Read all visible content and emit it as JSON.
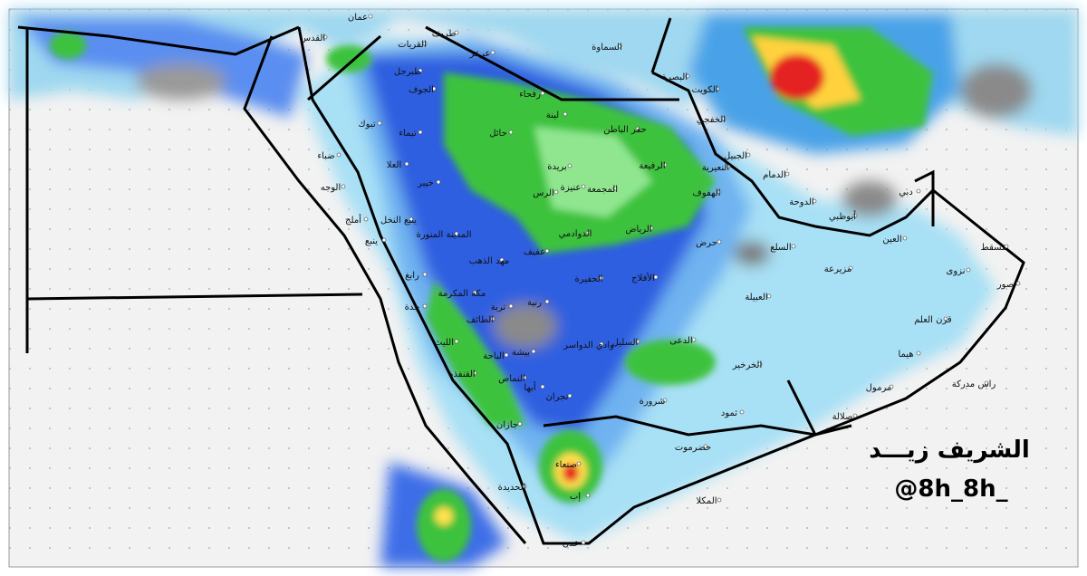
{
  "map": {
    "labels": [
      "عمان",
      "القدس",
      "طريف",
      "القريات",
      "عرعر",
      "السماوة",
      "البصرة",
      "طبرجل",
      "الكويت",
      "الجوف",
      "رفحاء",
      "الخفجي",
      "تبوك",
      "لينة",
      "حفر الباطن",
      "تيماء",
      "حائل",
      "ضباء",
      "الجبيل",
      "النعيرية",
      "بريدة",
      "الرفيعة",
      "العلا",
      "الوجه",
      "عنيزة",
      "الرس",
      "الدمام",
      "خيبر",
      "المجمعة",
      "الهفوف",
      "الدوحة",
      "أملج",
      "ينبع النخل",
      "الرياض",
      "أبوظبي",
      "دبي",
      "المدينة المنورة",
      "الدوادمي",
      "ينبع",
      "حرض",
      "عفيف",
      "السلع",
      "العين",
      "مسقط",
      "مهد الذهب",
      "مزيرعة",
      "نزوى",
      "رابغ",
      "الأفلاج",
      "الحفيرة",
      "مكة المكرمة",
      "جدة",
      "تربة",
      "رنية",
      "العبيلة",
      "صور",
      "الطائف",
      "قرن العلم",
      "السليل",
      "وادي الدواسر",
      "الدعى",
      "الليث",
      "بيشة",
      "هيما",
      "الخرخير",
      "الباحة",
      "القنفذة",
      "راس مدركة",
      "مرمول",
      "النماص",
      "أبها",
      "نجران",
      "شرورة",
      "ثمود",
      "صلالة",
      "جازان",
      "حضرموت",
      "صنعاء",
      "الحديدة",
      "إب",
      "المكلا",
      "عدن"
    ],
    "signature": "الشريف زيـــد",
    "handle": "@8h_8h_"
  }
}
